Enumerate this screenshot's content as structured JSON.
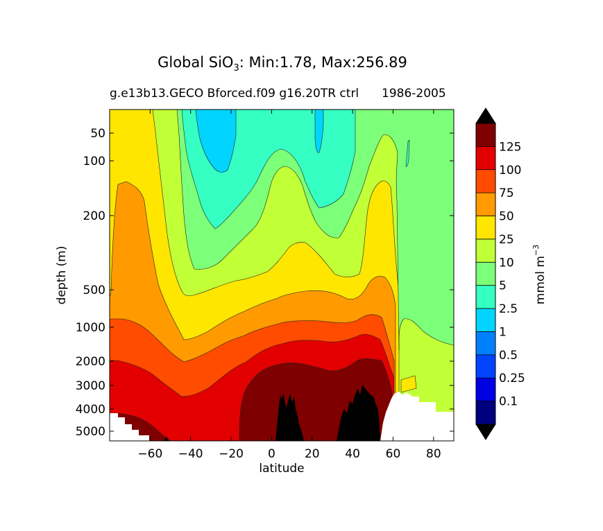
{
  "chart_data": {
    "type": "contourf",
    "title_prefix": "Global SiO",
    "title_subscript": "3",
    "title_suffix": ": Min:1.78, Max:256.89",
    "subtitle_left": "g.e13b13.GECO Bforced.f09 g16.20TR ctrl",
    "subtitle_right": "1986-2005",
    "xlabel": "latitude",
    "ylabel": "depth (m)",
    "xlim": [
      -80,
      90
    ],
    "ylim": [
      5500,
      0
    ],
    "x_ticks": [
      -60,
      -40,
      -20,
      0,
      20,
      40,
      60,
      80
    ],
    "x_tick_labels": [
      "−60",
      "−40",
      "−20",
      "0",
      "20",
      "40",
      "60",
      "80"
    ],
    "y_ticks": [
      50,
      100,
      200,
      500,
      1000,
      2000,
      3000,
      4000,
      5000
    ],
    "y_tick_labels": [
      "50",
      "100",
      "200",
      "500",
      "1000",
      "2000",
      "3000",
      "4000",
      "5000"
    ],
    "colorbar": {
      "label": "mmol m",
      "label_exponent": "−3",
      "levels": [
        0.1,
        0.25,
        0.5,
        1,
        2.5,
        5,
        10,
        25,
        50,
        75,
        100,
        125
      ],
      "level_labels": [
        "0.1",
        "0.25",
        "0.5",
        "1",
        "2.5",
        "5",
        "10",
        "25",
        "50",
        "75",
        "100",
        "125"
      ],
      "colors": [
        "#00007f",
        "#0000e3",
        "#0044ff",
        "#0080ff",
        "#00d4ff",
        "#35ffc3",
        "#7cff79",
        "#c1ff36",
        "#ffe600",
        "#ff9a00",
        "#ff4c00",
        "#e30000",
        "#7f0000"
      ],
      "extend": "both",
      "extend_color": "#000000"
    },
    "fields": {
      "land_color": "#000000",
      "missing_color": "#ffffff"
    }
  }
}
